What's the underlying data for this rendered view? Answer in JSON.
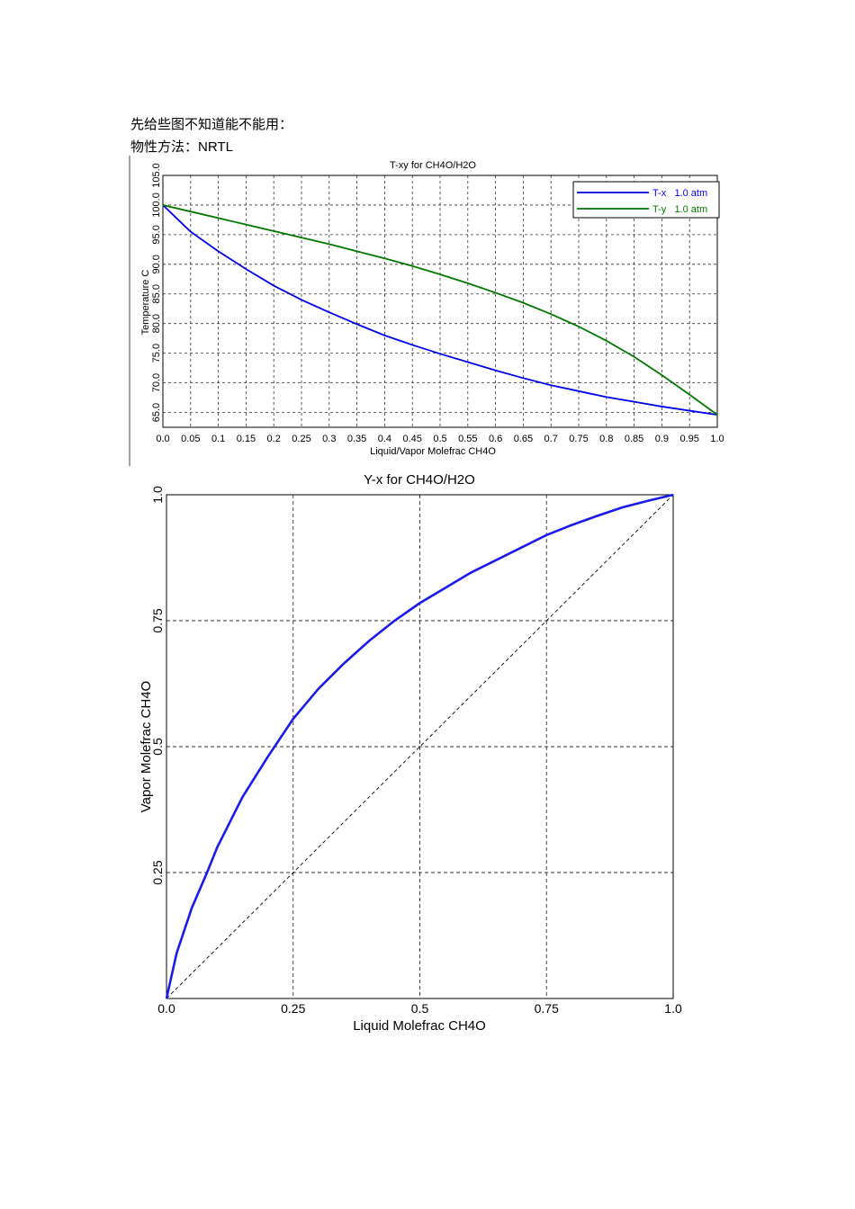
{
  "document": {
    "intro_line1": "先给些图不知道能不能用：",
    "intro_line2_prefix": "物性方法：",
    "intro_line2_value": "NRTL"
  },
  "colors": {
    "tx_line": "#0000ee",
    "ty_line": "#007700",
    "yx_line": "#1a1aee",
    "grid": "#333333",
    "legend_tx_text": "#0000ee",
    "legend_ty_text": "#007700"
  },
  "chart_data": [
    {
      "type": "line",
      "title": "T-xy for CH4O/H2O",
      "xlabel": "Liquid/Vapor Molefrac CH4O",
      "ylabel": "Temperature  C",
      "xlim": [
        0,
        1
      ],
      "ylim": [
        62.5,
        105
      ],
      "x_ticks": [
        "0.0",
        "0.05",
        "0.1",
        "0.15",
        "0.2",
        "0.25",
        "0.3",
        "0.35",
        "0.4",
        "0.45",
        "0.5",
        "0.55",
        "0.6",
        "0.65",
        "0.7",
        "0.75",
        "0.8",
        "0.85",
        "0.9",
        "0.95",
        "1.0"
      ],
      "y_ticks": [
        "65.0",
        "70.0",
        "75.0",
        "80.0",
        "85.0",
        "90.0",
        "95.0",
        "100.0",
        "105.0"
      ],
      "grid": true,
      "legend_position": "top-right",
      "series": [
        {
          "name": "T-x   1.0 atm",
          "x": [
            0,
            0.05,
            0.1,
            0.15,
            0.2,
            0.25,
            0.3,
            0.35,
            0.4,
            0.45,
            0.5,
            0.55,
            0.6,
            0.65,
            0.7,
            0.75,
            0.8,
            0.85,
            0.9,
            0.95,
            1.0
          ],
          "y": [
            100.0,
            95.5,
            92.2,
            89.2,
            86.4,
            84.0,
            81.9,
            79.9,
            78.0,
            76.4,
            74.9,
            73.5,
            72.1,
            70.8,
            69.6,
            68.6,
            67.6,
            66.8,
            66.0,
            65.3,
            64.6
          ]
        },
        {
          "name": "T-y   1.0 atm",
          "x": [
            0,
            0.05,
            0.1,
            0.15,
            0.2,
            0.25,
            0.3,
            0.35,
            0.4,
            0.45,
            0.5,
            0.55,
            0.6,
            0.65,
            0.7,
            0.75,
            0.8,
            0.85,
            0.9,
            0.95,
            1.0
          ],
          "y": [
            100.0,
            98.9,
            97.8,
            96.7,
            95.6,
            94.5,
            93.4,
            92.2,
            91.0,
            89.7,
            88.3,
            86.8,
            85.2,
            83.5,
            81.6,
            79.5,
            77.1,
            74.4,
            71.3,
            68.0,
            64.6
          ]
        }
      ]
    },
    {
      "type": "line",
      "title": "Y-x for CH4O/H2O",
      "xlabel": "Liquid Molefrac CH4O",
      "ylabel": "Vapor Molefrac CH4O",
      "xlim": [
        0,
        1
      ],
      "ylim": [
        0,
        1
      ],
      "x_ticks": [
        "0.0",
        "0.25",
        "0.5",
        "0.75",
        "1.0"
      ],
      "y_ticks": [
        "0.25",
        "0.5",
        "0.75",
        "1.0"
      ],
      "grid": true,
      "series": [
        {
          "x": [
            0,
            0.02,
            0.05,
            0.08,
            0.1,
            0.15,
            0.2,
            0.25,
            0.3,
            0.35,
            0.4,
            0.45,
            0.5,
            0.55,
            0.6,
            0.65,
            0.7,
            0.75,
            0.8,
            0.85,
            0.9,
            0.95,
            1.0
          ],
          "y": [
            0,
            0.09,
            0.18,
            0.25,
            0.3,
            0.4,
            0.48,
            0.555,
            0.615,
            0.665,
            0.71,
            0.75,
            0.785,
            0.815,
            0.845,
            0.87,
            0.895,
            0.92,
            0.94,
            0.958,
            0.975,
            0.988,
            1.0
          ]
        },
        {
          "x": [
            0,
            1
          ],
          "y": [
            0,
            1
          ]
        }
      ]
    }
  ]
}
